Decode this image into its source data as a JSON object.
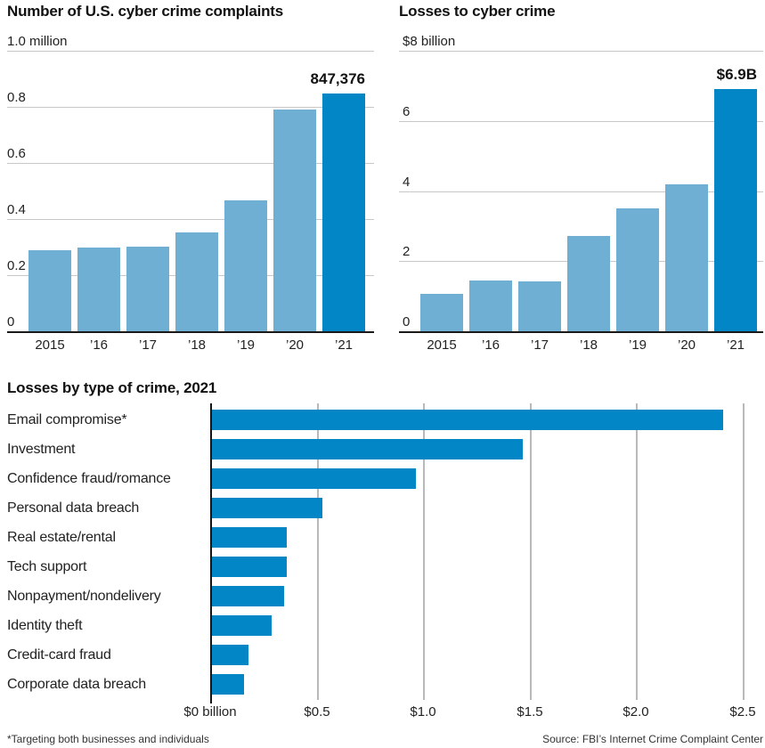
{
  "colors": {
    "bar_light": "#6FAFD3",
    "bar_dark": "#0286C5",
    "grid_gray": "#C8C8C8",
    "grid_gray_vertical": "#B9B9B9",
    "axis_black": "#1A1A1A",
    "title_text": "#111111",
    "label_text": "#222222"
  },
  "footer": {
    "footnote": "*Targeting both businesses and individuals",
    "source": "Source: FBI’s Internet Crime Complaint Center"
  },
  "chart_data": [
    {
      "id": "complaints",
      "type": "bar",
      "title": "Number of U.S. cyber crime complaints",
      "unit_label": "1.0 million",
      "categories": [
        "2015",
        "’16",
        "’17",
        "’18",
        "’19",
        "’20",
        "’21"
      ],
      "values": [
        0.288,
        0.299,
        0.302,
        0.352,
        0.467,
        0.792,
        0.847
      ],
      "annotation": "847,376",
      "ylim": [
        0,
        1.0
      ],
      "yticks": {
        "values": [
          1.0,
          0.8,
          0.6,
          0.4,
          0.2,
          0
        ],
        "labels": [
          "1.0 million",
          "0.8",
          "0.6",
          "0.4",
          "0.2",
          "0"
        ]
      },
      "highlight_last": true,
      "grid": "horizontal",
      "legend": "none"
    },
    {
      "id": "losses",
      "type": "bar",
      "title": "Losses to cyber crime",
      "unit_label": "$8 billion",
      "categories": [
        "2015",
        "’16",
        "’17",
        "’18",
        "’19",
        "’20",
        "’21"
      ],
      "values": [
        1.07,
        1.45,
        1.42,
        2.71,
        3.5,
        4.2,
        6.9
      ],
      "annotation": "$6.9B",
      "ylim": [
        0,
        8
      ],
      "yticks": {
        "values": [
          8,
          6,
          4,
          2,
          0
        ],
        "labels": [
          "$8 billion",
          "6",
          "4",
          "2",
          "0"
        ]
      },
      "highlight_last": true,
      "grid": "horizontal",
      "legend": "none",
      "tick_indent": 4
    },
    {
      "id": "bytype",
      "type": "bar-horizontal",
      "title": "Losses by type of crime, 2021",
      "categories": [
        "Email compromise*",
        "Investment",
        "Confidence fraud/romance",
        "Personal data breach",
        "Real estate/rental",
        "Tech support",
        "Nonpayment/nondelivery",
        "Identity theft",
        "Credit-card fraud",
        "Corporate data breach"
      ],
      "values": [
        2.4,
        1.46,
        0.96,
        0.52,
        0.35,
        0.35,
        0.34,
        0.28,
        0.17,
        0.15
      ],
      "xlim": [
        0,
        2.6
      ],
      "xticks": {
        "values": [
          0,
          0.5,
          1.0,
          1.5,
          2.0,
          2.5
        ],
        "labels": [
          "$0 billion",
          "$0.5",
          "$1.0",
          "$1.5",
          "$2.0",
          "$2.5"
        ]
      },
      "grid": "vertical",
      "legend": "none",
      "xlabel": "",
      "ylabel": ""
    }
  ]
}
